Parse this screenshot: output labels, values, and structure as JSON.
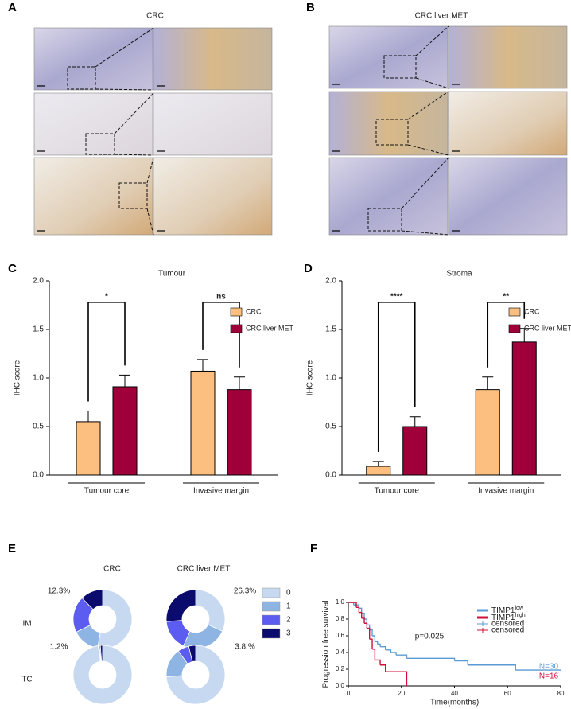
{
  "images": [
    {
      "panel_label": "A",
      "title": "CRC"
    },
    {
      "panel_label": "B",
      "title": "CRC liver MET"
    }
  ],
  "chart_data": [
    {
      "type": "bar",
      "panel_label": "C",
      "title": "Tumour",
      "y_label": "IHC score",
      "categories": [
        "Tumour core",
        "Invasive margin"
      ],
      "series": [
        {
          "name": "CRC",
          "color": "#fdbf80",
          "values": [
            0.55,
            1.07
          ],
          "errors": [
            0.11,
            0.12
          ]
        },
        {
          "name": "CRC liver MET",
          "color": "#a0003a",
          "values": [
            0.91,
            0.88
          ],
          "errors": [
            0.12,
            0.13
          ]
        }
      ],
      "significance": [
        "*",
        "ns"
      ],
      "ylim": [
        0,
        2
      ],
      "yticks": [
        {
          "value": 0,
          "label": "0.0"
        },
        0.5,
        {
          "value": 1,
          "label": "1.0"
        },
        1.5,
        {
          "value": 2,
          "label": "2.0"
        }
      ]
    },
    {
      "type": "bar",
      "panel_label": "D",
      "title": "Stroma",
      "y_label": "IHC score",
      "categories": [
        "Tumour core",
        "Invasive margin"
      ],
      "series": [
        {
          "name": "CRC",
          "color": "#fdbf80",
          "values": [
            0.09,
            0.88
          ],
          "errors": [
            0.05,
            0.13
          ]
        },
        {
          "name": "CRC liver MET",
          "color": "#a0003a",
          "values": [
            0.5,
            1.37
          ],
          "errors": [
            0.1,
            0.14
          ]
        }
      ],
      "significance": [
        "****",
        "**"
      ],
      "ylim": [
        0,
        2
      ],
      "yticks": [
        {
          "value": 0,
          "label": "0.0"
        },
        0.5,
        {
          "value": 1,
          "label": "1.0"
        },
        1.5,
        {
          "value": 2,
          "label": "2.0"
        }
      ]
    },
    {
      "type": "donut",
      "panel_label": "E",
      "columns": [
        "CRC",
        "CRC liver MET"
      ],
      "rows": [
        "IM",
        "TC"
      ],
      "categories": [
        "0",
        "1",
        "2",
        "3"
      ],
      "colors": [
        "#c6d9f1",
        "#8db4e2",
        "#5c5cf0",
        "#0b0b6e"
      ],
      "values": [
        [
          [
            52.7,
            15,
            20,
            12.3
          ],
          [
            31.7,
            25,
            16.7,
            26.3
          ]
        ],
        [
          [
            97.6,
            0.6,
            0.6,
            1.2
          ],
          [
            74,
            16,
            6.2,
            3.8
          ]
        ]
      ],
      "value_labels": [
        [
          [
            null,
            null,
            null,
            "12.3%"
          ],
          [
            null,
            null,
            null,
            "26.3%"
          ]
        ],
        [
          [
            null,
            null,
            null,
            "1.2%"
          ],
          [
            null,
            null,
            null,
            "3.8 %"
          ]
        ]
      ]
    },
    {
      "type": "line",
      "step": true,
      "panel_label": "F",
      "x_label": "Time(months)",
      "y_label": "Progression free survival",
      "annotation": "p=0.025",
      "xlim": [
        0,
        80
      ],
      "xticks": [
        0,
        20,
        40,
        60,
        80
      ],
      "ylim": [
        0,
        1
      ],
      "yticks": [
        {
          "value": 0,
          "label": "0.0"
        },
        0.2,
        0.4,
        0.6,
        0.8,
        {
          "value": 1,
          "label": "1.0"
        }
      ],
      "series": [
        {
          "name": "TIMP1",
          "name_superscript": "low",
          "censored_label": "censored",
          "n_label": "N=30",
          "color": "#5b9bd5",
          "x": [
            0,
            2,
            4,
            5,
            6,
            7,
            8,
            9,
            10,
            11,
            12,
            14,
            16,
            18,
            22,
            40,
            45,
            63,
            80
          ],
          "values": [
            1,
            0.97,
            0.93,
            0.87,
            0.8,
            0.73,
            0.67,
            0.6,
            0.53,
            0.5,
            0.47,
            0.43,
            0.4,
            0.37,
            0.33,
            0.3,
            0.25,
            0.19,
            0.19
          ]
        },
        {
          "name": "TIMP1",
          "name_superscript": "high",
          "censored_label": "censored",
          "n_label": "N=16",
          "color": "#d0103a",
          "x": [
            0,
            3,
            4,
            5,
            6,
            7,
            8,
            9,
            10,
            12,
            14,
            21,
            22
          ],
          "values": [
            1,
            0.94,
            0.88,
            0.81,
            0.75,
            0.69,
            0.56,
            0.44,
            0.31,
            0.25,
            0.17,
            0.17,
            0
          ]
        }
      ]
    }
  ]
}
